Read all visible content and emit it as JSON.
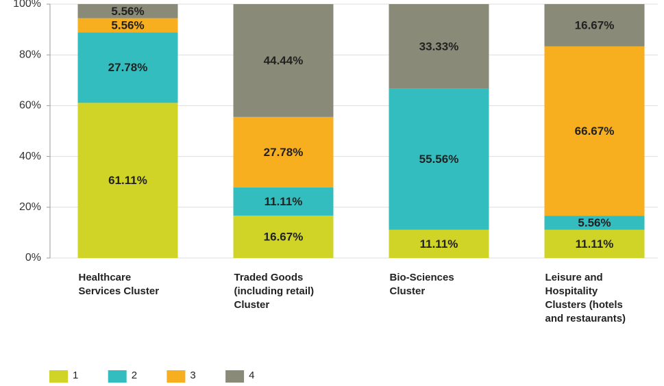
{
  "chart_data": {
    "type": "stacked_bar",
    "categories": [
      "Healthcare Services Cluster",
      "Traded Goods (including retail) Cluster",
      "Bio-Sciences Cluster",
      "Leisure and Hospitality Clusters (hotels and restaurants)"
    ],
    "series": [
      {
        "name": "1",
        "color": "#cfd427",
        "values": [
          61.11,
          16.67,
          11.11,
          11.11
        ],
        "value_labels": [
          "61.11%",
          "16.67%",
          "11.11%",
          "11.11%"
        ]
      },
      {
        "name": "2",
        "color": "#33bdbe",
        "values": [
          27.78,
          11.11,
          55.56,
          5.56
        ],
        "value_labels": [
          "27.78%",
          "11.11%",
          "55.56%",
          "5.56%"
        ]
      },
      {
        "name": "3",
        "color": "#f7ae1f",
        "values": [
          5.56,
          27.78,
          0,
          66.67
        ],
        "value_labels": [
          "5.56%",
          "27.78%",
          null,
          "66.67%"
        ]
      },
      {
        "name": "4",
        "color": "#8a8a78",
        "values": [
          5.56,
          44.44,
          33.33,
          16.67
        ],
        "value_labels": [
          "5.56%",
          "44.44%",
          "33.33%",
          "16.67%"
        ]
      }
    ],
    "ylim": [
      0,
      100
    ],
    "yticks": [
      {
        "value": 0,
        "label": "0%"
      },
      {
        "value": 20,
        "label": "20%"
      },
      {
        "value": 40,
        "label": "40%"
      },
      {
        "value": 60,
        "label": "60%"
      },
      {
        "value": 80,
        "label": "80%"
      },
      {
        "value": 100,
        "label": "100%"
      }
    ],
    "grid": true,
    "legend": "bottom-left"
  }
}
